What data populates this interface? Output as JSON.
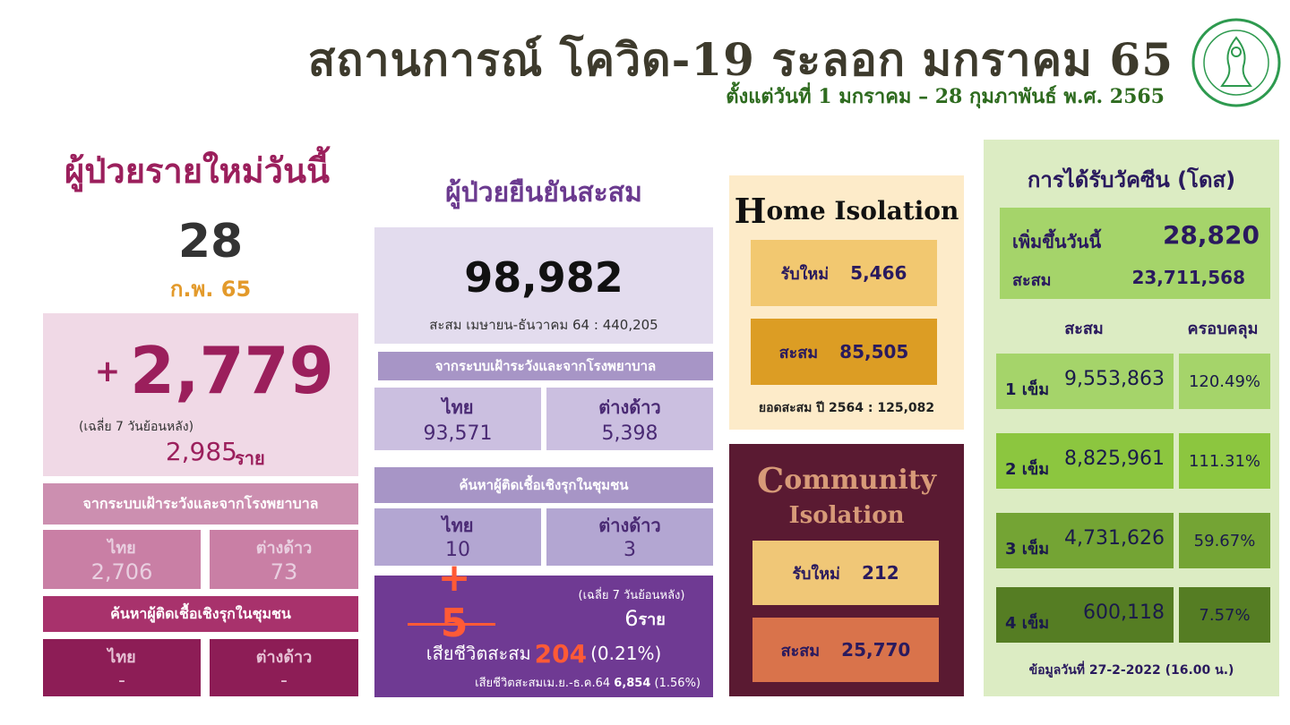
{
  "header": {
    "title": "สถานการณ์ โควิด-19 ระลอก มกราคม 65",
    "subtitle": "ตั้งแต่วันที่ 1 มกราคม – 28 กุมภาพันธ์ พ.ศ. 2565"
  },
  "new_cases": {
    "title": "ผู้ป่วยรายใหม่วันนี้",
    "day": "28",
    "month": "ก.พ. 65",
    "plus": "+",
    "count": "2,779",
    "avg_label": "(เฉลี่ย 7 วันย้อนหลัง)",
    "avg_value": "2,985",
    "avg_unit": "ราย",
    "surveillance_label": "จากระบบเฝ้าระวังและจากโรงพยาบาล",
    "thai_label": "ไทย",
    "thai_value": "2,706",
    "foreign_label": "ต่างด้าว",
    "foreign_value": "73",
    "active_label": "ค้นหาผู้ติดเชื้อเชิงรุกในชุมชน",
    "active_thai_label": "ไทย",
    "active_thai_value": "-",
    "active_foreign_label": "ต่างด้าว",
    "active_foreign_value": "-"
  },
  "confirmed": {
    "title": "ผู้ป่วยยืนยันสะสม",
    "total": "98,982",
    "prev": "สะสม เมษายน-ธันวาคม 64 : 440,205",
    "surveillance_label": "จากระบบเฝ้าระวังและจากโรงพยาบาล",
    "thai_label": "ไทย",
    "thai_value": "93,571",
    "foreign_label": "ต่างด้าว",
    "foreign_value": "5,398",
    "active_label": "ค้นหาผู้ติดเชื้อเชิงรุกในชุมชน",
    "active_thai_label": "ไทย",
    "active_thai_value": "10",
    "active_foreign_label": "ต่างด้าว",
    "active_foreign_value": "3"
  },
  "deaths": {
    "new": "+ 5",
    "avg_label": "(เฉลี่ย 7 วันย้อนหลัง)",
    "avg_value": "6",
    "avg_unit": "ราย",
    "cum_label": "เสียชีวิตสะสม",
    "cum_value": "204",
    "cum_pct": "(0.21%)",
    "prev_label": "เสียชีวิตสะสมเม.ย.-ธ.ค.64",
    "prev_value": "6,854",
    "prev_pct": "(1.56%)"
  },
  "home_isolation": {
    "title_cap": "H",
    "title_rest": "ome Isolation",
    "new_label": "รับใหม่",
    "new_value": "5,466",
    "cum_label": "สะสม",
    "cum_value": "85,505",
    "prev": "ยอดสะสม ปี 2564 : 125,082"
  },
  "community_isolation": {
    "title_cap": "C",
    "title_rest": "ommunity",
    "title_line2": "Isolation",
    "new_label": "รับใหม่",
    "new_value": "212",
    "cum_label": "สะสม",
    "cum_value": "25,770"
  },
  "vaccine": {
    "title": "การได้รับวัคซีน (โดส)",
    "today_label": "เพิ่มขึ้นวันนี้",
    "today_value": "28,820",
    "cum_label": "สะสม",
    "cum_value": "23,711,568",
    "col_cum": "สะสม",
    "col_coverage": "ครอบคลุม",
    "doses": [
      {
        "label": "1 เข็ม",
        "value": "9,553,863",
        "coverage": "120.49%"
      },
      {
        "label": "2 เข็ม",
        "value": "8,825,961",
        "coverage": "111.31%"
      },
      {
        "label": "3 เข็ม",
        "value": "4,731,626",
        "coverage": "59.67%"
      },
      {
        "label": "4 เข็ม",
        "value": "600,118",
        "coverage": "7.57%"
      }
    ],
    "update": "ข้อมูลวันที่ 27-2-2022 (16.00 น.)"
  },
  "colors": {
    "dose_1": "#a5d46a",
    "dose_2": "#8cc63f",
    "dose_3": "#74a434",
    "dose_4": "#557d23"
  }
}
